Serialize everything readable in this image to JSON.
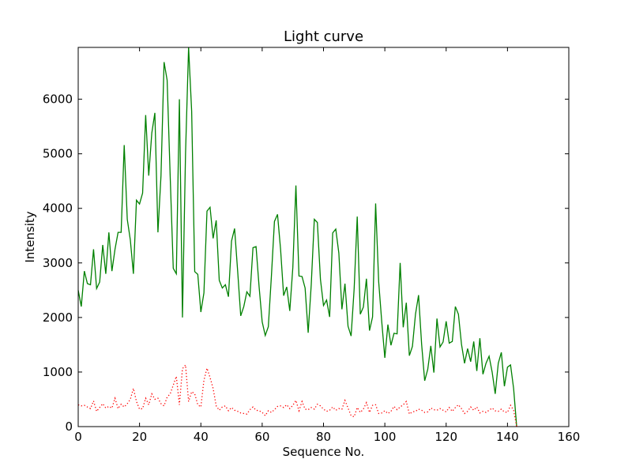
{
  "chart_data": {
    "type": "line",
    "title": "Light curve",
    "xlabel": "Sequence No.",
    "ylabel": "Intensity",
    "xlim": [
      0,
      160
    ],
    "ylim": [
      0,
      6950
    ],
    "xticks": [
      0,
      20,
      40,
      60,
      80,
      100,
      120,
      140,
      160
    ],
    "yticks": [
      0,
      1000,
      2000,
      3000,
      4000,
      5000,
      6000
    ],
    "grid": false,
    "series": [
      {
        "color": "#008000",
        "style": "solid",
        "values": [
          2500,
          2200,
          2850,
          2620,
          2600,
          3250,
          2530,
          2650,
          3330,
          2800,
          3560,
          2850,
          3250,
          3560,
          3560,
          5160,
          3800,
          3420,
          2800,
          4150,
          4080,
          4280,
          5710,
          4600,
          5380,
          5750,
          3560,
          4600,
          6680,
          6350,
          4580,
          2900,
          2800,
          6000,
          2000,
          5000,
          6950,
          5780,
          2840,
          2790,
          2100,
          2450,
          3950,
          4020,
          3450,
          3780,
          2680,
          2540,
          2600,
          2380,
          3400,
          3630,
          2850,
          2030,
          2200,
          2470,
          2390,
          3280,
          3300,
          2560,
          1920,
          1670,
          1830,
          2750,
          3760,
          3890,
          3250,
          2400,
          2560,
          2120,
          2920,
          4420,
          2760,
          2750,
          2540,
          1720,
          2600,
          3800,
          3740,
          2700,
          2220,
          2320,
          2010,
          3550,
          3620,
          3180,
          2150,
          2620,
          1840,
          1660,
          2530,
          3850,
          2060,
          2190,
          2710,
          1760,
          2010,
          4090,
          2650,
          1920,
          1260,
          1870,
          1490,
          1710,
          1700,
          3000,
          1820,
          2270,
          1300,
          1470,
          2060,
          2410,
          1510,
          840,
          1050,
          1480,
          990,
          1980,
          1460,
          1550,
          1930,
          1530,
          1560,
          2200,
          2060,
          1510,
          1160,
          1430,
          1190,
          1560,
          1020,
          1620,
          960,
          1160,
          1290,
          1000,
          600,
          1160,
          1360,
          740,
          1090,
          1130,
          700,
          0
        ]
      },
      {
        "color": "#ff0000",
        "style": "dotted",
        "values": [
          400,
          380,
          390,
          360,
          330,
          470,
          280,
          350,
          420,
          340,
          370,
          340,
          520,
          330,
          410,
          360,
          420,
          500,
          700,
          460,
          320,
          330,
          520,
          400,
          600,
          500,
          520,
          420,
          380,
          540,
          600,
          760,
          920,
          400,
          1060,
          1130,
          460,
          640,
          600,
          400,
          360,
          850,
          1070,
          900,
          700,
          380,
          300,
          360,
          380,
          290,
          350,
          300,
          280,
          250,
          240,
          230,
          310,
          360,
          300,
          290,
          260,
          200,
          290,
          260,
          310,
          370,
          380,
          350,
          400,
          330,
          390,
          480,
          290,
          460,
          320,
          310,
          350,
          320,
          410,
          380,
          320,
          280,
          300,
          360,
          300,
          330,
          320,
          480,
          340,
          200,
          180,
          350,
          260,
          320,
          440,
          260,
          390,
          400,
          240,
          250,
          290,
          240,
          280,
          370,
          310,
          360,
          400,
          460,
          230,
          270,
          280,
          320,
          300,
          260,
          270,
          340,
          310,
          300,
          330,
          300,
          270,
          350,
          280,
          350,
          400,
          330,
          240,
          280,
          360,
          300,
          360,
          250,
          280,
          260,
          300,
          340,
          290,
          280,
          320,
          270,
          260,
          390,
          300,
          0
        ]
      }
    ]
  }
}
